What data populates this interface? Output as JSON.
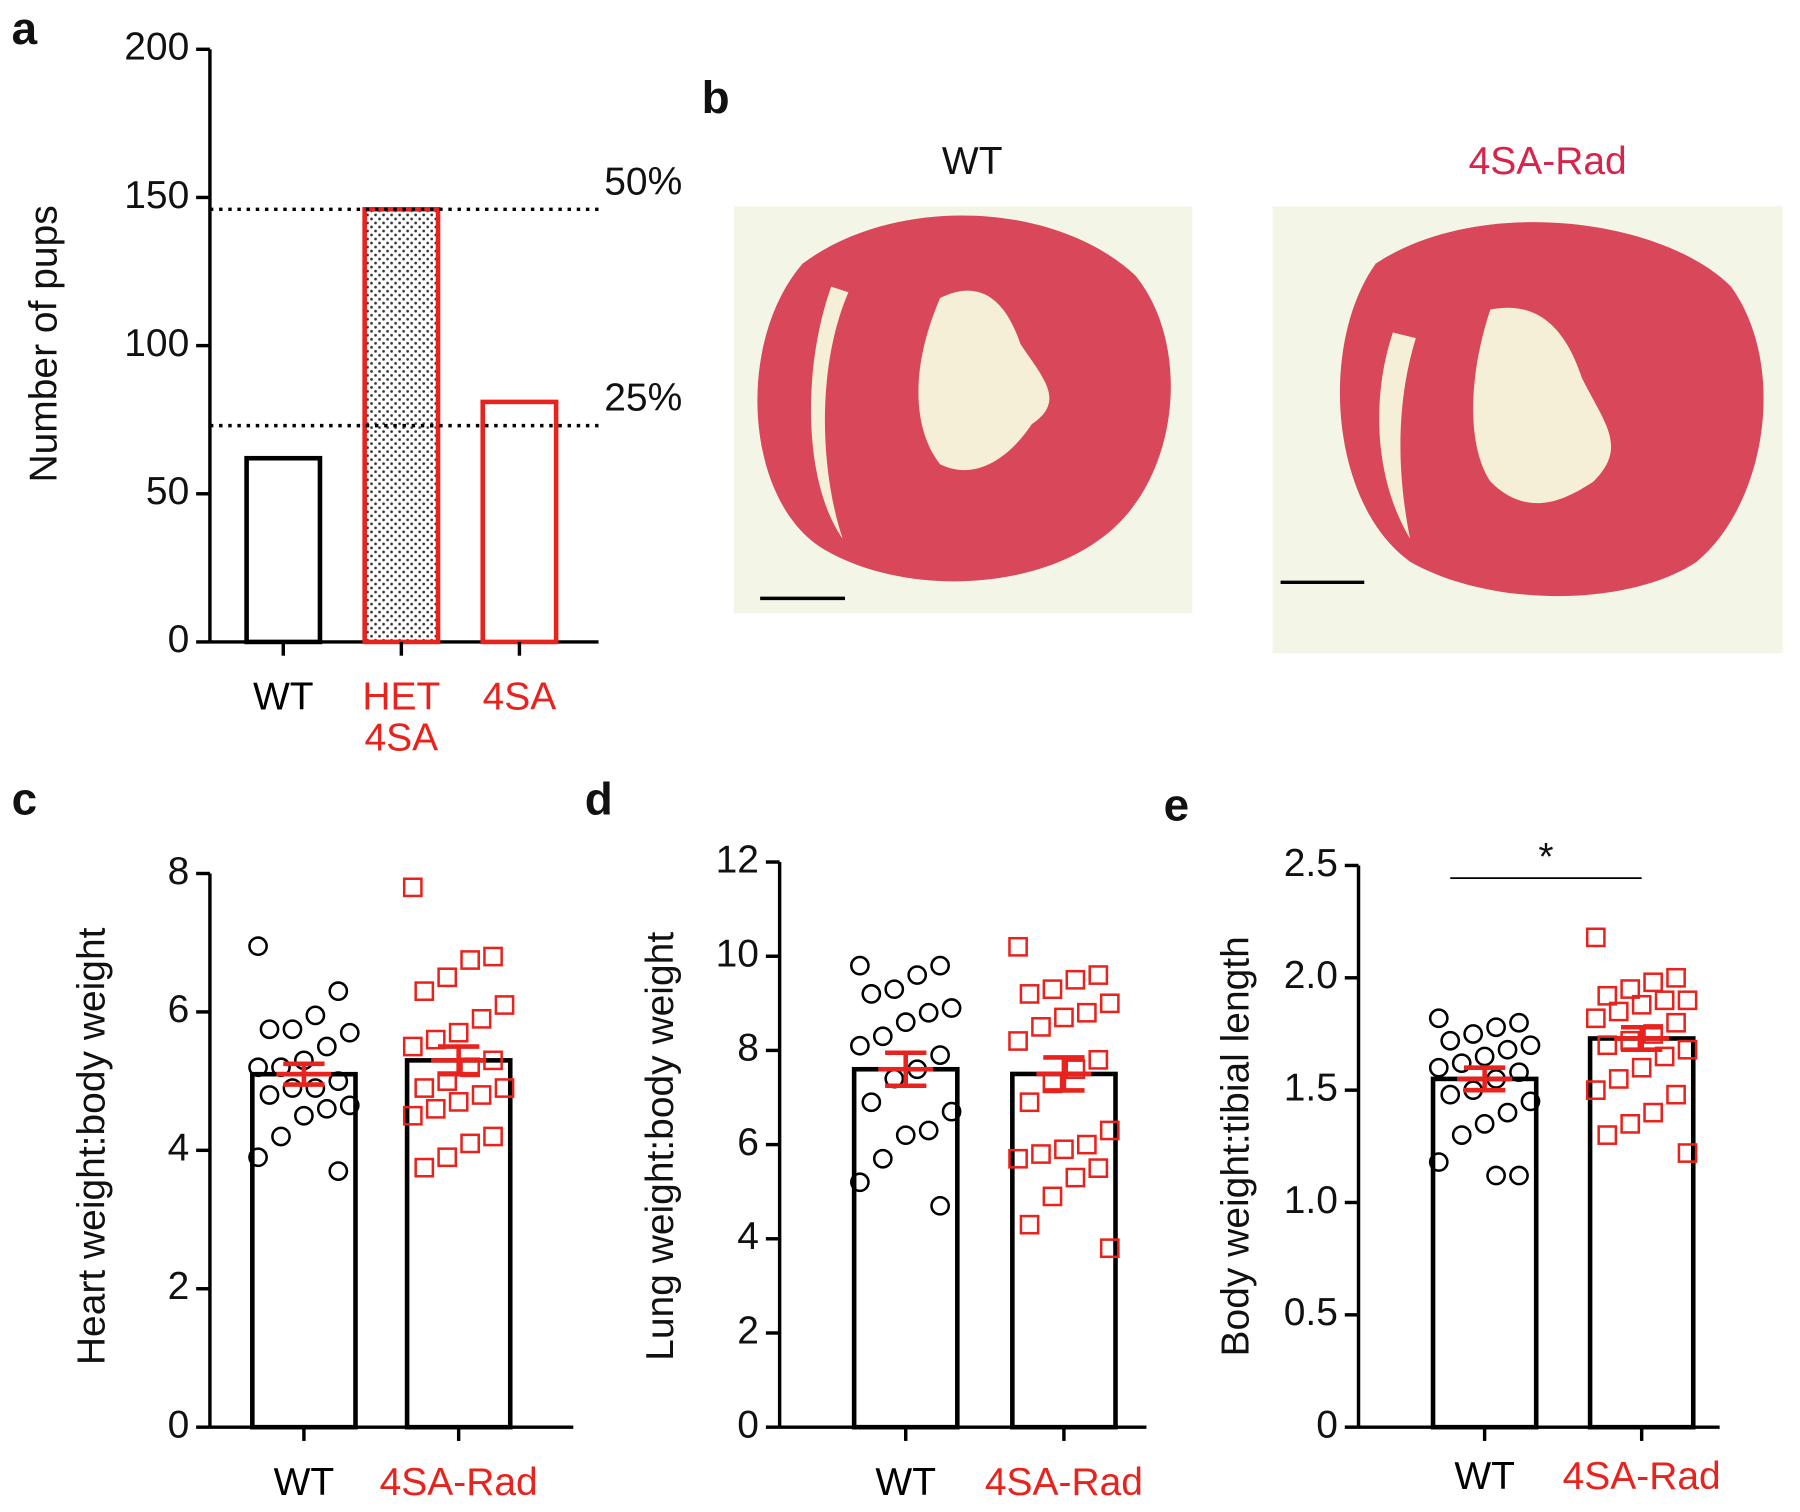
{
  "chart_data": [
    {
      "type": "bar",
      "panel": "a",
      "ylabel": "Number of pups",
      "categories": [
        "WT",
        "HET 4SA",
        "4SA"
      ],
      "values": [
        62,
        146,
        81
      ],
      "colors": [
        "#000000",
        "#e8231d",
        "#e8231d"
      ],
      "patterns": [
        null,
        "dots",
        null
      ],
      "ylim": [
        0,
        200
      ],
      "yticks": [
        0,
        50,
        100,
        150,
        200
      ],
      "ref_lines": [
        {
          "value": 146,
          "label": "50%"
        },
        {
          "value": 73,
          "label": "25%"
        }
      ]
    },
    {
      "type": "bar_scatter",
      "panel": "c",
      "ylabel": "Heart weight:body weight",
      "categories": [
        "WT",
        "4SA-Rad"
      ],
      "category_colors": [
        "#000000",
        "#e8231d"
      ],
      "markers": [
        "circle",
        "square"
      ],
      "error_color": "#e8231d",
      "values": [
        5.1,
        5.3
      ],
      "errors": [
        0.15,
        0.2
      ],
      "points": [
        [
          6.95,
          6.3,
          5.95,
          5.75,
          5.75,
          5.7,
          5.5,
          5.3,
          5.2,
          5.2,
          5.0,
          4.9,
          4.9,
          4.8,
          4.65,
          4.6,
          4.5,
          4.2,
          3.9,
          3.7
        ],
        [
          7.8,
          6.8,
          6.75,
          6.5,
          6.3,
          6.1,
          5.9,
          5.7,
          5.6,
          5.5,
          5.3,
          5.2,
          5.0,
          4.9,
          4.9,
          4.8,
          4.7,
          4.6,
          4.5,
          4.2,
          4.1,
          3.9,
          3.75
        ]
      ],
      "ylim": [
        0,
        8
      ],
      "yticks": [
        0,
        2,
        4,
        6,
        8
      ]
    },
    {
      "type": "bar_scatter",
      "panel": "d",
      "ylabel": "Lung weight:body weight",
      "categories": [
        "WT",
        "4SA-Rad"
      ],
      "category_colors": [
        "#000000",
        "#e8231d"
      ],
      "markers": [
        "circle",
        "square"
      ],
      "error_color": "#e8231d",
      "values": [
        7.6,
        7.5
      ],
      "errors": [
        0.35,
        0.35
      ],
      "points": [
        [
          9.8,
          9.8,
          9.6,
          9.3,
          9.2,
          8.9,
          8.8,
          8.6,
          8.3,
          8.1,
          7.9,
          7.6,
          7.4,
          6.9,
          6.7,
          6.3,
          6.2,
          5.7,
          5.2,
          4.7
        ],
        [
          10.2,
          9.6,
          9.5,
          9.3,
          9.2,
          9.0,
          8.8,
          8.7,
          8.5,
          8.2,
          7.8,
          7.6,
          7.3,
          6.9,
          6.3,
          6.0,
          5.9,
          5.8,
          5.7,
          5.5,
          5.3,
          4.9,
          4.3,
          3.8
        ]
      ],
      "ylim": [
        0,
        12
      ],
      "yticks": [
        0,
        2,
        4,
        6,
        8,
        10,
        12
      ]
    },
    {
      "type": "bar_scatter",
      "panel": "e",
      "ylabel": "Body weight:tibial length",
      "categories": [
        "WT",
        "4SA-Rad"
      ],
      "category_colors": [
        "#000000",
        "#e8231d"
      ],
      "markers": [
        "circle",
        "square"
      ],
      "error_color": "#e8231d",
      "values": [
        1.55,
        1.73
      ],
      "errors": [
        0.05,
        0.05
      ],
      "points": [
        [
          1.82,
          1.8,
          1.78,
          1.75,
          1.72,
          1.7,
          1.68,
          1.65,
          1.62,
          1.6,
          1.58,
          1.55,
          1.5,
          1.48,
          1.45,
          1.4,
          1.35,
          1.3,
          1.18,
          1.12,
          1.12
        ],
        [
          2.18,
          2.0,
          1.98,
          1.95,
          1.92,
          1.9,
          1.9,
          1.88,
          1.85,
          1.82,
          1.8,
          1.75,
          1.72,
          1.7,
          1.68,
          1.65,
          1.6,
          1.55,
          1.5,
          1.48,
          1.4,
          1.35,
          1.3,
          1.22
        ]
      ],
      "significance": "*",
      "ylim": [
        0,
        2.5
      ],
      "yticks": [
        0,
        0.5,
        {
          "value": 1,
          "label": "1.0"
        },
        1.5,
        {
          "value": 2,
          "label": "2.0"
        },
        2.5
      ]
    }
  ],
  "panel_b": {
    "label": "b",
    "images": [
      {
        "title": "WT",
        "color": "#000000"
      },
      {
        "title": "4SA-Rad",
        "color": "#d8234a"
      }
    ]
  }
}
